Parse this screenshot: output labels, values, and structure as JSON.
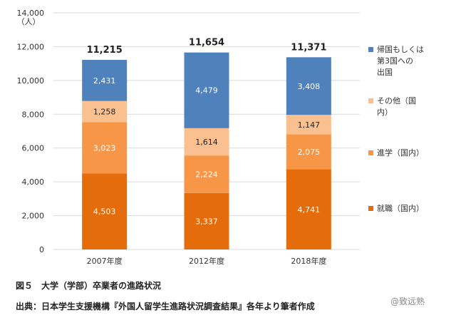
{
  "chart_data": {
    "type": "bar",
    "stacked": true,
    "categories": [
      "2007年度",
      "2012年度",
      "2018年度"
    ],
    "series": [
      {
        "name": "就職（国内）",
        "values": [
          4503,
          3337,
          4741
        ],
        "color": "#e46c0a",
        "label_color": "#ffffff"
      },
      {
        "name": "進学（国内）",
        "values": [
          3023,
          2224,
          2075
        ],
        "color": "#f79646",
        "label_color": "#ffffff"
      },
      {
        "name": "その他（国内）",
        "values": [
          1258,
          1614,
          1147
        ],
        "color": "#fac090",
        "label_color": "#222222"
      },
      {
        "name": "帰国もしくは第3国への出国",
        "values": [
          2431,
          4479,
          3408
        ],
        "color": "#4f81bd",
        "label_color": "#ffffff"
      }
    ],
    "series_labels": [
      {
        "name": "就職（国内）",
        "values": [
          "4,503",
          "3,337",
          "4,741"
        ]
      },
      {
        "name": "進学（国内）",
        "values": [
          "3,023",
          "2,224",
          "2,075"
        ]
      },
      {
        "name": "その他（国内）",
        "values": [
          "1,258",
          "1,614",
          "1,147"
        ]
      },
      {
        "name": "帰国もしくは第3国への出国",
        "values": [
          "2,431",
          "4,479",
          "3,408"
        ]
      }
    ],
    "totals": [
      "11,215",
      "11,654",
      "11,371"
    ],
    "y_ticks": [
      0,
      2000,
      4000,
      6000,
      8000,
      10000,
      12000,
      14000
    ],
    "y_tick_labels": [
      "0",
      "2,000",
      "4,000",
      "6,000",
      "8,000",
      "10,000",
      "12,000",
      "14,000"
    ],
    "ylim": [
      0,
      14000
    ],
    "y_unit": "（人）",
    "grid": true,
    "legend_position": "right",
    "legend_lines": [
      [
        "就職（国内）"
      ],
      [
        "進学（国内）"
      ],
      [
        "その他（国",
        "内）"
      ],
      [
        "帰国もしくは",
        "第3国への",
        "出国"
      ]
    ]
  },
  "caption": "図５　大学（学部）卒業者の進路状況",
  "source": "出典：日本学生支援機構『外国人留学生進路状況調査結果』各年より筆者作成",
  "watermark": "@致远熟"
}
